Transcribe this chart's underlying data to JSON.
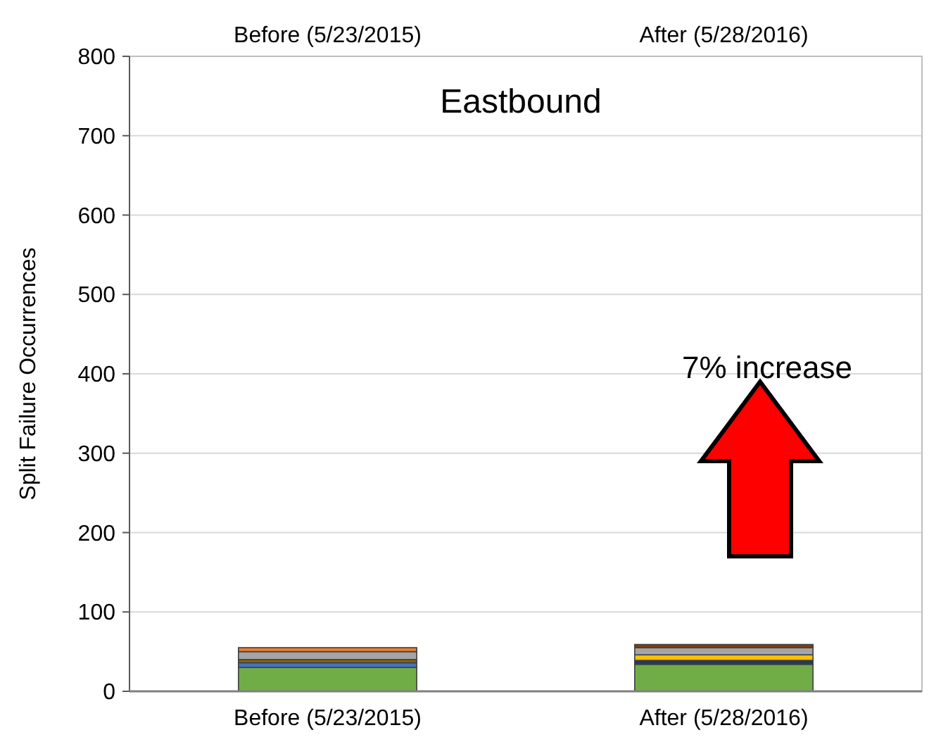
{
  "chart_data": {
    "type": "bar",
    "stacked": true,
    "title": "Eastbound",
    "ylabel": "Split Failure Occurrences",
    "categories": [
      "Before (5/23/2015)",
      "After (5/28/2016)"
    ],
    "series": [
      {
        "colors": [
          "#70ad47",
          "#70ad47"
        ],
        "values": [
          30,
          34
        ]
      },
      {
        "colors": [
          "#4472c4",
          "#203864"
        ],
        "values": [
          6,
          5
        ]
      },
      {
        "colors": [
          "#8b6508",
          "#ffc000"
        ],
        "values": [
          4,
          7
        ]
      },
      {
        "colors": [
          "#a5a5a5",
          "#a5a5a5"
        ],
        "values": [
          10,
          9
        ]
      },
      {
        "colors": [
          "#ed7d31",
          "#843c0c"
        ],
        "values": [
          5,
          4
        ]
      }
    ],
    "ylim": [
      0,
      800
    ],
    "yticks": [
      0,
      100,
      200,
      300,
      400,
      500,
      600,
      700,
      800
    ],
    "grid": "y",
    "annotations": [
      "7% increase"
    ]
  }
}
